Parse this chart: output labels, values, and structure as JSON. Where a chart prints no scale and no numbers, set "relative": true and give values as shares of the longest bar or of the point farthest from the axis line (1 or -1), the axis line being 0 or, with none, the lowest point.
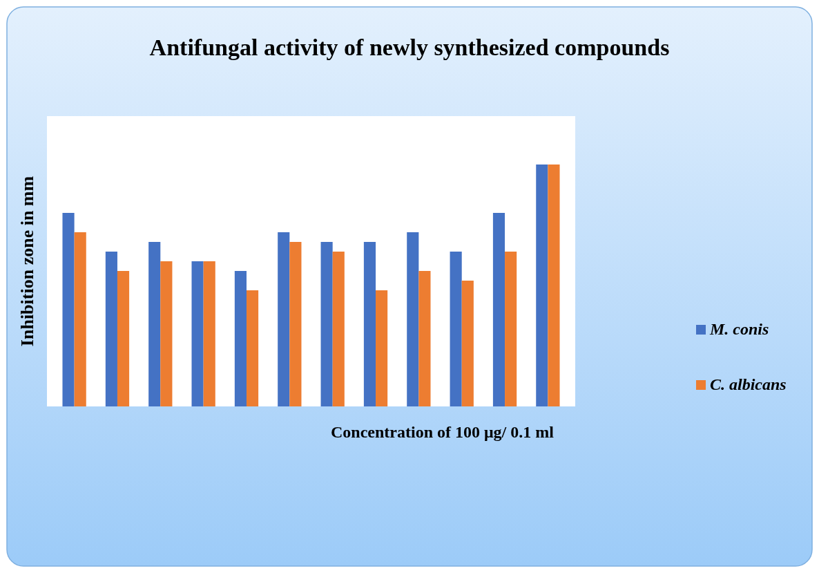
{
  "chart_data": {
    "type": "bar",
    "title": "Antifungal activity of newly synthesized compounds",
    "xlabel": "Concentration of 100 μg/ 0.1 ml",
    "ylabel": "Inhibition  zone in mm",
    "relative": true,
    "legend": "right",
    "categories": [
      null,
      null,
      null,
      null,
      null,
      null,
      null,
      null,
      null,
      null,
      null,
      null
    ],
    "series": [
      {
        "name": "M. conis",
        "color": "#4472c4",
        "values": [
          0.8,
          0.64,
          0.68,
          0.6,
          0.56,
          0.72,
          0.68,
          0.68,
          0.72,
          0.64,
          0.8,
          1
        ]
      },
      {
        "name": "C. albicans",
        "color": "#ed7d31",
        "values": [
          0.72,
          0.56,
          0.6,
          0.6,
          0.48,
          0.68,
          0.64,
          0.48,
          0.56,
          0.52,
          0.64,
          1
        ]
      }
    ]
  }
}
